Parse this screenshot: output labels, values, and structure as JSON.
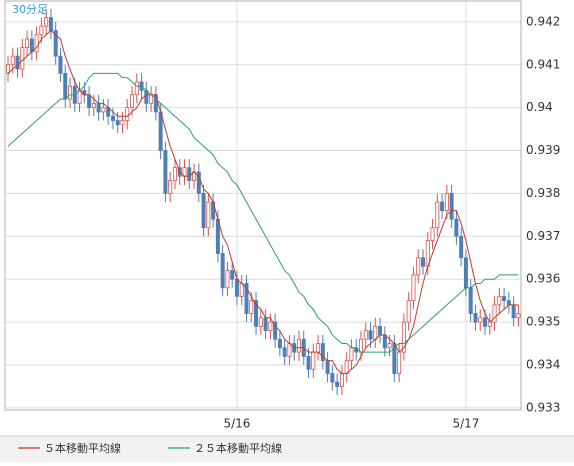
{
  "chart_data": {
    "type": "candlestick",
    "title": "30分足",
    "categories": [
      null,
      null,
      null,
      null,
      null,
      null,
      null,
      null,
      null,
      null,
      null,
      null,
      null,
      null,
      null,
      null,
      null,
      null,
      null,
      null,
      null,
      null,
      null,
      null,
      null,
      null,
      null,
      null,
      null,
      null,
      null,
      null,
      null,
      null,
      null,
      null,
      null,
      null,
      null,
      null,
      null,
      null,
      null,
      null,
      null,
      null,
      null,
      null,
      "5/16",
      null,
      null,
      null,
      null,
      null,
      null,
      null,
      null,
      null,
      null,
      null,
      null,
      null,
      null,
      null,
      null,
      null,
      null,
      null,
      null,
      null,
      null,
      null,
      null,
      null,
      null,
      null,
      null,
      null,
      null,
      null,
      null,
      null,
      null,
      null,
      null,
      null,
      null,
      null,
      null,
      null,
      null,
      null,
      null,
      null,
      null,
      null,
      "5/17",
      null,
      null,
      null,
      null,
      null,
      null,
      null,
      null,
      null,
      null,
      null
    ],
    "open": [
      0.9408,
      0.941,
      0.9412,
      0.9409,
      0.9414,
      0.9416,
      0.9413,
      0.9417,
      0.9419,
      0.9421,
      0.9418,
      0.9412,
      0.9408,
      0.9402,
      0.9405,
      0.9401,
      0.9404,
      0.9403,
      0.94,
      0.9401,
      0.9399,
      0.94,
      0.9398,
      0.9397,
      0.9396,
      0.9397,
      0.94,
      0.9403,
      0.9406,
      0.9404,
      0.9401,
      0.9403,
      0.9399,
      0.939,
      0.938,
      0.9383,
      0.9386,
      0.9384,
      0.9386,
      0.9383,
      0.9385,
      0.938,
      0.9372,
      0.9378,
      0.9374,
      0.9366,
      0.9358,
      0.9362,
      0.936,
      0.9356,
      0.9359,
      0.9352,
      0.9355,
      0.9349,
      0.9351,
      0.9348,
      0.935,
      0.9346,
      0.9344,
      0.9342,
      0.9345,
      0.9343,
      0.9346,
      0.9342,
      0.9339,
      0.9343,
      0.9345,
      0.9341,
      0.9338,
      0.9336,
      0.9335,
      0.9338,
      0.9341,
      0.9344,
      0.9343,
      0.9346,
      0.9348,
      0.9346,
      0.9349,
      0.9347,
      0.9344,
      0.9345,
      0.9338,
      0.9343,
      0.935,
      0.9355,
      0.9361,
      0.9365,
      0.9363,
      0.9369,
      0.9372,
      0.9378,
      0.9376,
      0.938,
      0.9374,
      0.937,
      0.9365,
      0.9358,
      0.9352,
      0.935,
      0.9351,
      0.9349,
      0.935,
      0.9354,
      0.9356,
      0.9355,
      0.9354,
      0.9351
    ],
    "high": [
      0.9412,
      0.9414,
      0.9414,
      0.9416,
      0.9418,
      0.9418,
      0.9419,
      0.9421,
      0.9423,
      0.9423,
      0.942,
      0.9414,
      0.941,
      0.9407,
      0.9407,
      0.9406,
      0.9406,
      0.9405,
      0.9403,
      0.9403,
      0.9402,
      0.9402,
      0.94,
      0.9399,
      0.9399,
      0.9402,
      0.9405,
      0.9408,
      0.9408,
      0.9406,
      0.9405,
      0.9405,
      0.9401,
      0.9392,
      0.9385,
      0.9388,
      0.9388,
      0.9388,
      0.9388,
      0.9387,
      0.9387,
      0.9382,
      0.938,
      0.938,
      0.9376,
      0.9368,
      0.9364,
      0.9364,
      0.9362,
      0.9361,
      0.9361,
      0.9357,
      0.9357,
      0.9353,
      0.9353,
      0.9352,
      0.9352,
      0.9348,
      0.9346,
      0.9347,
      0.9347,
      0.9348,
      0.9348,
      0.9344,
      0.9345,
      0.9347,
      0.9347,
      0.9343,
      0.934,
      0.9338,
      0.934,
      0.9343,
      0.9346,
      0.9346,
      0.9348,
      0.935,
      0.935,
      0.9351,
      0.9351,
      0.9349,
      0.9347,
      0.9347,
      0.9345,
      0.9352,
      0.9357,
      0.9363,
      0.9367,
      0.9367,
      0.9371,
      0.9374,
      0.938,
      0.938,
      0.9382,
      0.9382,
      0.9376,
      0.9372,
      0.9367,
      0.936,
      0.9354,
      0.9353,
      0.9353,
      0.9352,
      0.9356,
      0.9358,
      0.9358,
      0.9357,
      0.9356,
      0.9354
    ],
    "low": [
      0.9406,
      0.9408,
      0.9407,
      0.9407,
      0.9412,
      0.9411,
      0.9411,
      0.9415,
      0.9417,
      0.9416,
      0.941,
      0.9406,
      0.94,
      0.94,
      0.9399,
      0.9399,
      0.9401,
      0.9398,
      0.9398,
      0.9397,
      0.9397,
      0.9396,
      0.9395,
      0.9394,
      0.9394,
      0.9395,
      0.9398,
      0.9401,
      0.9402,
      0.9399,
      0.9399,
      0.9397,
      0.9388,
      0.9378,
      0.9378,
      0.9381,
      0.9382,
      0.9382,
      0.9381,
      0.9381,
      0.9378,
      0.937,
      0.937,
      0.9372,
      0.9364,
      0.9356,
      0.9356,
      0.9358,
      0.9354,
      0.9354,
      0.935,
      0.935,
      0.9347,
      0.9347,
      0.9346,
      0.9346,
      0.9344,
      0.9342,
      0.934,
      0.934,
      0.9341,
      0.9341,
      0.934,
      0.9337,
      0.9337,
      0.9341,
      0.9339,
      0.9336,
      0.9334,
      0.9333,
      0.9333,
      0.9336,
      0.9339,
      0.9341,
      0.9341,
      0.9344,
      0.9344,
      0.9344,
      0.9345,
      0.9342,
      0.9342,
      0.9336,
      0.9336,
      0.9341,
      0.9348,
      0.9353,
      0.9359,
      0.9361,
      0.9361,
      0.9367,
      0.937,
      0.9374,
      0.9374,
      0.9372,
      0.9368,
      0.9363,
      0.9356,
      0.935,
      0.9348,
      0.9348,
      0.9347,
      0.9347,
      0.9348,
      0.9352,
      0.9353,
      0.9352,
      0.9349,
      0.9349
    ],
    "close": [
      0.941,
      0.9412,
      0.9409,
      0.9414,
      0.9416,
      0.9413,
      0.9417,
      0.9419,
      0.9421,
      0.9418,
      0.9412,
      0.9408,
      0.9402,
      0.9405,
      0.9401,
      0.9404,
      0.9403,
      0.94,
      0.9401,
      0.9399,
      0.94,
      0.9398,
      0.9397,
      0.9396,
      0.9397,
      0.94,
      0.9403,
      0.9406,
      0.9404,
      0.9401,
      0.9403,
      0.9399,
      0.939,
      0.938,
      0.9383,
      0.9386,
      0.9384,
      0.9386,
      0.9383,
      0.9385,
      0.938,
      0.9372,
      0.9378,
      0.9374,
      0.9366,
      0.9358,
      0.9362,
      0.936,
      0.9356,
      0.9359,
      0.9352,
      0.9355,
      0.9349,
      0.9351,
      0.9348,
      0.935,
      0.9346,
      0.9344,
      0.9342,
      0.9345,
      0.9343,
      0.9346,
      0.9342,
      0.9339,
      0.9343,
      0.9345,
      0.9341,
      0.9338,
      0.9336,
      0.9335,
      0.9338,
      0.9341,
      0.9344,
      0.9343,
      0.9346,
      0.9348,
      0.9346,
      0.9349,
      0.9347,
      0.9344,
      0.9345,
      0.9338,
      0.9343,
      0.935,
      0.9355,
      0.9361,
      0.9365,
      0.9363,
      0.9369,
      0.9372,
      0.9378,
      0.9376,
      0.938,
      0.9374,
      0.937,
      0.9365,
      0.9358,
      0.9352,
      0.935,
      0.9351,
      0.9349,
      0.935,
      0.9354,
      0.9356,
      0.9355,
      0.9354,
      0.9351,
      0.9352
    ],
    "up_color": "#d9534f",
    "down_color": "#4f7fb5",
    "series": [
      {
        "name": "５本移動平均線",
        "color": "#c0392b",
        "values": [
          0.9408,
          0.9409,
          0.941,
          0.9411,
          0.9412,
          0.9413,
          0.9414,
          0.9416,
          0.9417,
          0.9418,
          0.9417,
          0.9416,
          0.9412,
          0.9409,
          0.9406,
          0.9404,
          0.9403,
          0.9403,
          0.9402,
          0.9401,
          0.9401,
          0.94,
          0.9399,
          0.9398,
          0.9398,
          0.9398,
          0.9399,
          0.94,
          0.9402,
          0.9403,
          0.9403,
          0.9403,
          0.9399,
          0.9395,
          0.9391,
          0.9388,
          0.9385,
          0.9384,
          0.9384,
          0.9385,
          0.9384,
          0.9381,
          0.938,
          0.9378,
          0.9374,
          0.937,
          0.9368,
          0.9364,
          0.936,
          0.9359,
          0.9358,
          0.9356,
          0.9354,
          0.9353,
          0.9351,
          0.9351,
          0.9349,
          0.9348,
          0.9346,
          0.9345,
          0.9344,
          0.9344,
          0.9344,
          0.9343,
          0.9343,
          0.9343,
          0.9342,
          0.9341,
          0.9341,
          0.9339,
          0.9338,
          0.9338,
          0.9339,
          0.934,
          0.9342,
          0.9344,
          0.9345,
          0.9346,
          0.9347,
          0.9347,
          0.9346,
          0.9345,
          0.9343,
          0.9344,
          0.9346,
          0.9349,
          0.9354,
          0.9359,
          0.9363,
          0.9366,
          0.9369,
          0.9372,
          0.9375,
          0.9376,
          0.9376,
          0.9373,
          0.9369,
          0.9364,
          0.9359,
          0.9355,
          0.9352,
          0.935,
          0.9351,
          0.9352,
          0.9353,
          0.9354,
          0.9354,
          0.9354
        ]
      },
      {
        "name": "２５本移動平均線",
        "color": "#2e9e6a",
        "values": [
          0.9391,
          0.9392,
          0.9393,
          0.9394,
          0.9395,
          0.9396,
          0.9397,
          0.9398,
          0.9399,
          0.94,
          0.9401,
          0.9402,
          0.9402,
          0.9403,
          0.9403,
          0.9404,
          0.9405,
          0.9407,
          0.9408,
          0.9408,
          0.9408,
          0.9408,
          0.9408,
          0.9408,
          0.9407,
          0.9407,
          0.9406,
          0.9405,
          0.9405,
          0.9404,
          0.9403,
          0.9402,
          0.9401,
          0.94,
          0.9399,
          0.9398,
          0.9397,
          0.9396,
          0.9395,
          0.9393,
          0.9392,
          0.9391,
          0.939,
          0.9389,
          0.9387,
          0.9386,
          0.9385,
          0.9383,
          0.9382,
          0.938,
          0.9378,
          0.9376,
          0.9374,
          0.9372,
          0.937,
          0.9368,
          0.9366,
          0.9364,
          0.9362,
          0.9361,
          0.9359,
          0.9357,
          0.9356,
          0.9354,
          0.9353,
          0.9351,
          0.935,
          0.9349,
          0.9347,
          0.9346,
          0.9345,
          0.9345,
          0.9344,
          0.9344,
          0.9343,
          0.9343,
          0.9343,
          0.9343,
          0.9343,
          0.9343,
          0.9343,
          0.9344,
          0.9345,
          0.9345,
          0.9346,
          0.9347,
          0.9348,
          0.9349,
          0.935,
          0.9351,
          0.9352,
          0.9353,
          0.9354,
          0.9355,
          0.9356,
          0.9357,
          0.9358,
          0.9358,
          0.9359,
          0.9359,
          0.936,
          0.936,
          0.936,
          0.9361,
          0.9361,
          0.9361,
          0.9361,
          0.9361
        ]
      }
    ],
    "ylim": [
      0.93295,
      0.94251
    ],
    "yticks": [
      0.933,
      0.934,
      0.935,
      0.936,
      0.937,
      0.938,
      0.939,
      0.94,
      0.941,
      0.942
    ],
    "grid": true
  }
}
